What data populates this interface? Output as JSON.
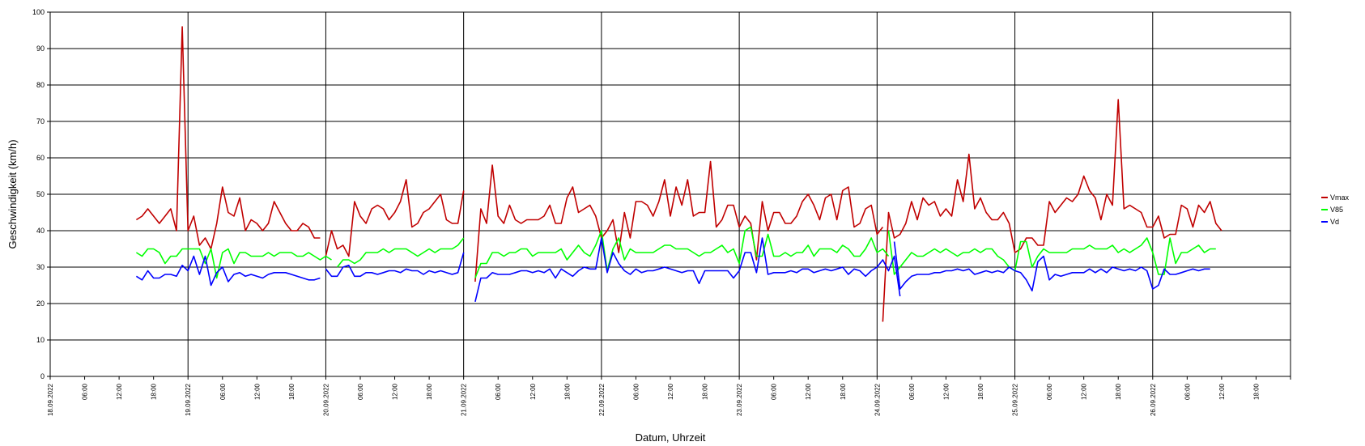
{
  "chart_data": {
    "type": "line",
    "xlabel": "Datum, Uhrzeit",
    "ylabel": "Geschwindigkeit (km/h)",
    "ylim": [
      0,
      100
    ],
    "yticks": [
      "0",
      "10",
      "20",
      "30",
      "40",
      "50",
      "60",
      "70",
      "80",
      "90",
      "100"
    ],
    "x_range": [
      "2022-09-18 00:00",
      "2022-09-27 00:00"
    ],
    "grid": true,
    "legend_position": "right",
    "x_tick_labels": [
      "18.09.2022",
      "06:00",
      "12:00",
      "18:00",
      "19.09.2022",
      "06:00",
      "12:00",
      "18:00",
      "20.09.2022",
      "06:00",
      "12:00",
      "18:00",
      "21.09.2022",
      "06:00",
      "12:00",
      "18:00",
      "22.09.2022",
      "06:00",
      "12:00",
      "18:00",
      "23.09.2022",
      "06:00",
      "12:00",
      "18:00",
      "24.09.2022",
      "06:00",
      "12:00",
      "18:00",
      "25.09.2022",
      "06:00",
      "12:00",
      "18:00",
      "26.09.2022",
      "06:00",
      "12:00",
      "18:00"
    ],
    "series": [
      {
        "name": "Vmax",
        "color": "#c00000",
        "segments": [
          {
            "start": "2022-09-18 15:00",
            "values": [
              43,
              44,
              46,
              44,
              42,
              44,
              46,
              40,
              96,
              40,
              44,
              36,
              38,
              35,
              42,
              52,
              45,
              44,
              49,
              40,
              43,
              42,
              40,
              42,
              48,
              45,
              42,
              40,
              40,
              42,
              41,
              38,
              38
            ]
          },
          {
            "start": "2022-09-20 00:00",
            "values": [
              33,
              40,
              35,
              36,
              33,
              48,
              44,
              42,
              46,
              47,
              46,
              43,
              45,
              48,
              54,
              41,
              42,
              45,
              46,
              48,
              50,
              43,
              42,
              42,
              51
            ]
          },
          {
            "start": "2022-09-21 02:00",
            "values": [
              26,
              46,
              42,
              58,
              44,
              42,
              47,
              43,
              42,
              43,
              43,
              43,
              44,
              47,
              42,
              42,
              49,
              52,
              45,
              46,
              47,
              44,
              38,
              40,
              43,
              34,
              45,
              38,
              48,
              48,
              47,
              44,
              48,
              54,
              44,
              52,
              47,
              54,
              44,
              45,
              45,
              59,
              41,
              43,
              47,
              47,
              41,
              44,
              42,
              32,
              48,
              40,
              45,
              45,
              42,
              42,
              44,
              48,
              50,
              47,
              43,
              49,
              50,
              43,
              51,
              52,
              41,
              42,
              46,
              47,
              39,
              41
            ]
          },
          {
            "start": "2022-09-24 01:00",
            "values": [
              15,
              45,
              38,
              39,
              42,
              48,
              43,
              49,
              47,
              48,
              44,
              46,
              44,
              54,
              48,
              61,
              46,
              49,
              45,
              43,
              43,
              45,
              42,
              34,
              35,
              38,
              38,
              36,
              36,
              48,
              45,
              47,
              49,
              48,
              50,
              55,
              51,
              49,
              43,
              50,
              47,
              76,
              46,
              47,
              46,
              45,
              41,
              41,
              44,
              38,
              39,
              39,
              47,
              46,
              41,
              47,
              45,
              48,
              42,
              40
            ]
          }
        ]
      },
      {
        "name": "V85",
        "color": "#00ff00",
        "segments": [
          {
            "start": "2022-09-18 15:00",
            "values": [
              34,
              33,
              35,
              35,
              34,
              31,
              33,
              33,
              35,
              35,
              35,
              35,
              31,
              35,
              27,
              34,
              35,
              31,
              34,
              34,
              33,
              33,
              33,
              34,
              33,
              34,
              34,
              34,
              33,
              33,
              34,
              33,
              32,
              33,
              32
            ]
          },
          {
            "start": "2022-09-20 02:00",
            "values": [
              30,
              32,
              32,
              31,
              32,
              34,
              34,
              34,
              35,
              34,
              35,
              35,
              35,
              34,
              33,
              34,
              35,
              34,
              35,
              35,
              35,
              36,
              38
            ]
          },
          {
            "start": "2022-09-21 02:00",
            "values": [
              27,
              31,
              31,
              34,
              34,
              33,
              34,
              34,
              35,
              35,
              33,
              34,
              34,
              34,
              34,
              35,
              32,
              34,
              36,
              34,
              33,
              36,
              40,
              29,
              35,
              38,
              32,
              35,
              34,
              34,
              34,
              34,
              35,
              36,
              36,
              35,
              35,
              35,
              34,
              33,
              34,
              34,
              35,
              36,
              34,
              35,
              31,
              40,
              41,
              33,
              33,
              39,
              33,
              33,
              34,
              33,
              34,
              34,
              36,
              33,
              35,
              35,
              35,
              34,
              36,
              35,
              33,
              33,
              35,
              38,
              34,
              35,
              33
            ]
          },
          {
            "start": "2022-09-24 02:00",
            "values": [
              40,
              28,
              30,
              32,
              34,
              33,
              33,
              34,
              35,
              34,
              35,
              34,
              33,
              34,
              34,
              35,
              34,
              35,
              35,
              33,
              32,
              30,
              29,
              37,
              37,
              30,
              33,
              35,
              34,
              34,
              34,
              34,
              35,
              35,
              35,
              36,
              35,
              35,
              35,
              36,
              34,
              35,
              34,
              35,
              36,
              38,
              34,
              28,
              28,
              38,
              31,
              34,
              34,
              35,
              36,
              34,
              35,
              35
            ]
          }
        ]
      },
      {
        "name": "Vd",
        "color": "#0000ff",
        "segments": [
          {
            "start": "2022-09-18 15:00",
            "values": [
              27.5,
              26.5,
              29,
              27,
              27,
              28,
              28,
              27.5,
              30.5,
              29,
              33,
              28,
              33,
              25,
              28.5,
              30,
              26,
              28,
              28.5,
              27.5,
              28,
              27.5,
              27,
              28,
              28.5,
              28.5,
              28.5,
              28,
              27.5,
              27,
              26.5,
              26.5,
              27
            ]
          },
          {
            "start": "2022-09-20 00:00",
            "values": [
              29.5,
              27.5,
              27.5,
              30,
              30.5,
              27.5,
              27.5,
              28.5,
              28.5,
              28,
              28.5,
              29,
              29,
              28.5,
              29.5,
              29,
              29,
              28,
              29,
              28.5,
              29,
              28.5,
              28,
              28.5,
              34
            ]
          },
          {
            "start": "2022-09-21 02:00",
            "values": [
              20.5,
              27,
              27,
              28.5,
              28,
              28,
              28,
              28.5,
              29,
              29,
              28.5,
              29,
              28.5,
              29.5,
              27,
              29.5,
              28.5,
              27.5,
              29,
              30,
              29.5,
              29.5,
              38,
              28.5,
              34,
              31,
              29,
              28,
              29.5,
              28.5,
              29,
              29,
              29.5,
              30,
              29.5,
              29,
              28.5,
              29,
              29,
              25.5,
              29,
              29,
              29,
              29,
              29,
              27,
              29,
              34,
              34,
              28.5,
              38,
              28,
              28.5,
              28.5,
              28.5,
              29,
              28.5,
              29.5,
              29.5,
              28.5,
              29,
              29.5,
              29,
              29.5,
              30,
              28,
              29.5,
              29,
              27.5,
              29,
              30,
              32,
              29,
              33,
              22
            ]
          },
          {
            "start": "2022-09-24 03:00",
            "values": [
              37,
              24,
              26,
              27.5,
              28,
              28,
              28,
              28.5,
              28.5,
              29,
              29,
              29.5,
              29,
              29.5,
              28,
              28.5,
              29,
              28.5,
              29,
              28.5,
              30,
              29,
              28.5,
              26.5,
              23.5,
              31.5,
              33,
              26.5,
              28,
              27.5,
              28,
              28.5,
              28.5,
              28.5,
              29.5,
              28.5,
              29.5,
              28.5,
              30,
              29.5,
              29,
              29.5,
              29,
              30,
              29,
              24,
              25,
              29.5,
              28,
              28,
              28.5,
              29,
              29.5,
              29,
              29.5,
              29.5
            ]
          }
        ]
      }
    ]
  }
}
